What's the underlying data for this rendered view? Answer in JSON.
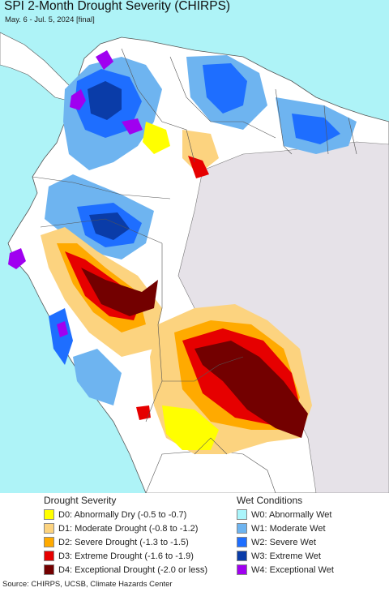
{
  "title": "SPI 2-Month Drought Severity (CHIRPS)",
  "subtitle": "May. 6 - Jul. 5, 2024 [final]",
  "legend": {
    "drought_heading": "Drought Severity",
    "wet_heading": "Wet Conditions",
    "drought_items": [
      {
        "label": "D0: Abnormally Dry (-0.5 to -0.7)",
        "color": "#ffff00"
      },
      {
        "label": "D1: Moderate Drought (-0.8 to -1.2)",
        "color": "#fcd37f"
      },
      {
        "label": "D2: Severe Drought (-1.3 to -1.5)",
        "color": "#ffaa00"
      },
      {
        "label": "D3: Extreme Drought (-1.6 to -1.9)",
        "color": "#e60000"
      },
      {
        "label": "D4: Exceptional Drought (-2.0 or less)",
        "color": "#730000"
      }
    ],
    "wet_items": [
      {
        "label": "W0: Abnormally Wet",
        "color": "#aaf5fb"
      },
      {
        "label": "W1: Moderate Wet",
        "color": "#6eb4f0"
      },
      {
        "label": "W2: Severe Wet",
        "color": "#1e6eff"
      },
      {
        "label": "W3: Extreme Wet",
        "color": "#0a3ca8"
      },
      {
        "label": "W4: Exceptional Wet",
        "color": "#a000f0"
      }
    ]
  },
  "source": "Source: CHIRPS, UCSB, Climate Hazards Center",
  "colors": {
    "ocean": "#aef3f7",
    "land": "#ffffff",
    "no_data": "#e6e2e8",
    "border": "#555555"
  }
}
